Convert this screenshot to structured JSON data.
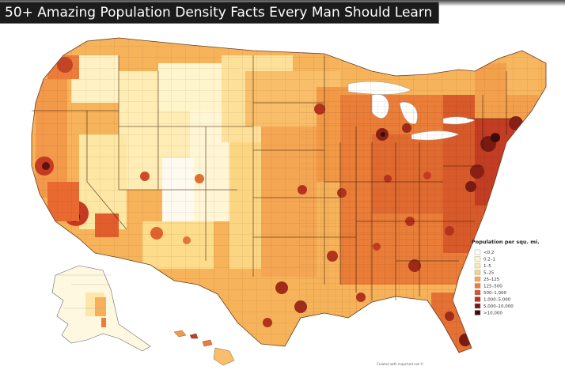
{
  "header": {
    "title": "50+ Amazing Population Density Facts Every Man Should Learn"
  },
  "map": {
    "type": "choropleth",
    "region": "United States (counties)",
    "legend": {
      "title": "Population per squ. mi.",
      "placement": "bottom-right",
      "items": [
        {
          "label": "<0.2",
          "color": "#fffdf4"
        },
        {
          "label": "0.2–1",
          "color": "#fff5cc"
        },
        {
          "label": "1–5",
          "color": "#ffe9a6"
        },
        {
          "label": "5–25",
          "color": "#fdd07a"
        },
        {
          "label": "25–125",
          "color": "#f9a64f"
        },
        {
          "label": "125–500",
          "color": "#ee7a36"
        },
        {
          "label": "500–1,000",
          "color": "#d9532a"
        },
        {
          "label": "1,000–5,000",
          "color": "#b4331f"
        },
        {
          "label": "5,000–10,000",
          "color": "#7c1a12"
        },
        {
          "label": ">10,000",
          "color": "#3e0b08"
        }
      ]
    },
    "credit": "Created with mapchart.net ©"
  }
}
